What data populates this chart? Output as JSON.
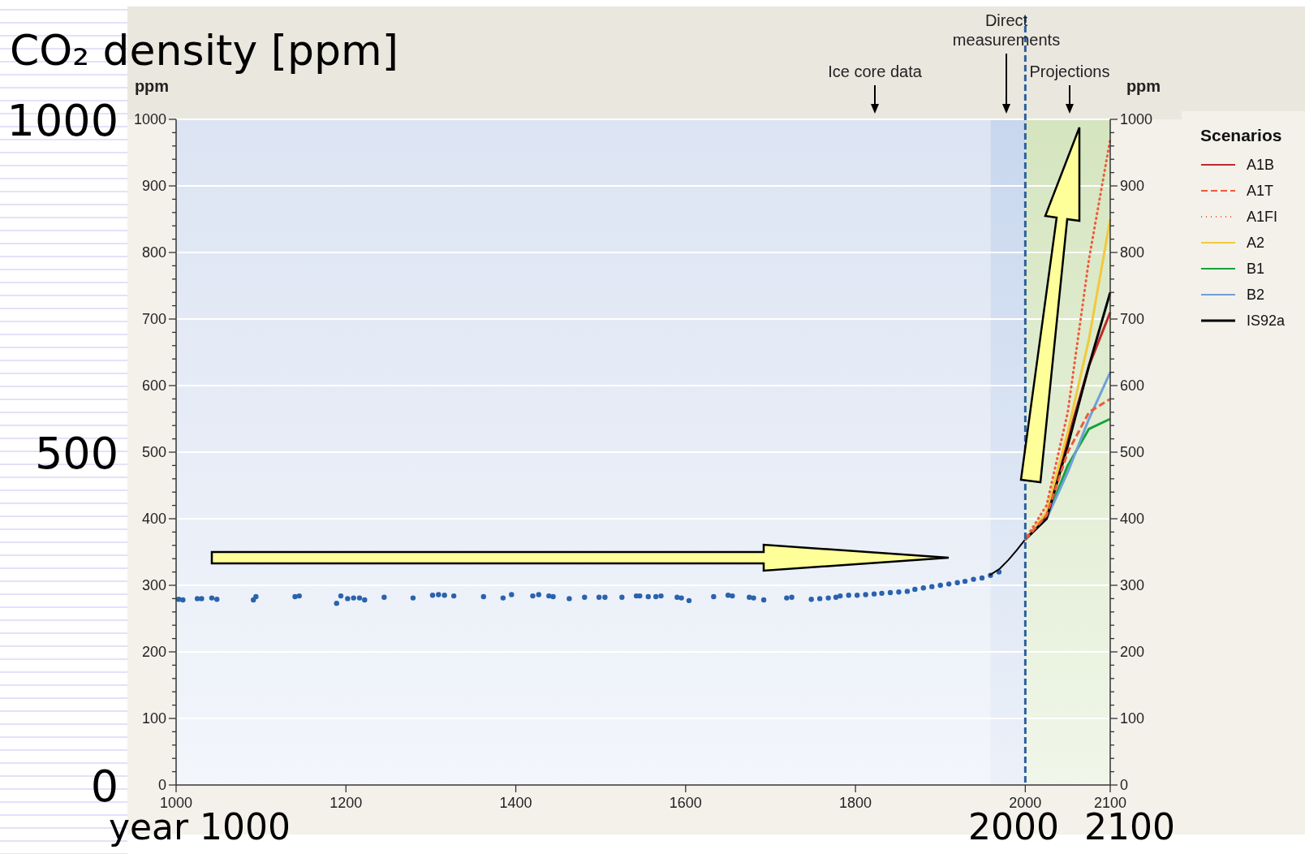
{
  "chart_data": {
    "type": "line",
    "title": "CO₂ density [ppm]",
    "ylabel": "ppm",
    "y2label": "ppm",
    "legend_title": "Scenarios",
    "legend": "right",
    "grid": "y",
    "xlim": [
      1000,
      2100
    ],
    "xticks": [
      1000,
      1200,
      1400,
      1600,
      1800,
      2000,
      2100
    ],
    "ylim": [
      0,
      1000
    ],
    "yticks": [
      0,
      {
        "value": 20,
        "label": null
      },
      {
        "value": 40,
        "label": null
      },
      {
        "value": 60,
        "label": null
      },
      {
        "value": 80,
        "label": null
      },
      100,
      {
        "value": 120,
        "label": null
      },
      {
        "value": 140,
        "label": null
      },
      {
        "value": 160,
        "label": null
      },
      {
        "value": 180,
        "label": null
      },
      200,
      {
        "value": 220,
        "label": null
      },
      {
        "value": 240,
        "label": null
      },
      {
        "value": 260,
        "label": null
      },
      {
        "value": 280,
        "label": null
      },
      300,
      {
        "value": 320,
        "label": null
      },
      {
        "value": 340,
        "label": null
      },
      {
        "value": 360,
        "label": null
      },
      {
        "value": 380,
        "label": null
      },
      400,
      {
        "value": 420,
        "label": null
      },
      {
        "value": 440,
        "label": null
      },
      {
        "value": 460,
        "label": null
      },
      {
        "value": 480,
        "label": null
      },
      500,
      {
        "value": 520,
        "label": null
      },
      {
        "value": 540,
        "label": null
      },
      {
        "value": 560,
        "label": null
      },
      {
        "value": 580,
        "label": null
      },
      600,
      {
        "value": 620,
        "label": null
      },
      {
        "value": 640,
        "label": null
      },
      {
        "value": 660,
        "label": null
      },
      {
        "value": 680,
        "label": null
      },
      700,
      {
        "value": 720,
        "label": null
      },
      {
        "value": 740,
        "label": null
      },
      {
        "value": 760,
        "label": null
      },
      {
        "value": 780,
        "label": null
      },
      800,
      {
        "value": 820,
        "label": null
      },
      {
        "value": 840,
        "label": null
      },
      {
        "value": 860,
        "label": null
      },
      {
        "value": 880,
        "label": null
      },
      900,
      {
        "value": 920,
        "label": null
      },
      {
        "value": 940,
        "label": null
      },
      {
        "value": 960,
        "label": null
      },
      {
        "value": 980,
        "label": null
      },
      1000
    ],
    "y2lim": [
      0,
      1000
    ],
    "y2ticks": [
      0,
      100,
      200,
      300,
      400,
      500,
      600,
      700,
      800,
      900,
      1000
    ],
    "bands": [
      {
        "axis": "x",
        "from": 1000,
        "to": 1959,
        "color": "#dce4f3"
      },
      {
        "axis": "x",
        "from": 1959,
        "to": 2000,
        "color": "#c8d7ee"
      },
      {
        "axis": "x",
        "from": 2000,
        "to": 2100,
        "color": "#d5e5bf"
      }
    ],
    "ref_lines": [
      {
        "axis": "x",
        "value": 2000,
        "color": "#2d5f9e",
        "line_style": "dashed"
      }
    ],
    "annotations": [
      "Ice core data",
      "Direct measurements",
      "Projections",
      "1000",
      "500",
      "0",
      "year 1000",
      "2000",
      "2100"
    ],
    "series": [
      {
        "type": "scatter",
        "color": "#2a62ad",
        "marker": "circle",
        "x": [
          1003,
          1008,
          1025,
          1030,
          1042,
          1048,
          1091,
          1094,
          1140,
          1145,
          1189,
          1194,
          1202,
          1209,
          1216,
          1222,
          1245,
          1279,
          1302,
          1309,
          1316,
          1327,
          1362,
          1385,
          1395,
          1420,
          1427,
          1439,
          1444,
          1463,
          1481,
          1498,
          1505,
          1525,
          1542,
          1546,
          1556,
          1565,
          1571,
          1590,
          1595,
          1604,
          1633,
          1650,
          1655,
          1675,
          1680,
          1692,
          1719,
          1725,
          1748,
          1758,
          1768,
          1777,
          1782,
          1792,
          1802,
          1812,
          1822,
          1831,
          1841,
          1851,
          1861,
          1870,
          1880,
          1890,
          1900,
          1910,
          1920,
          1929,
          1939,
          1949,
          1959,
          1969
        ],
        "values": [
          279,
          278,
          280,
          280,
          281,
          279,
          278,
          283,
          283,
          284,
          273,
          284,
          280,
          281,
          281,
          278,
          282,
          281,
          285,
          286,
          285,
          284,
          283,
          281,
          286,
          284,
          286,
          284,
          283,
          280,
          282,
          282,
          282,
          282,
          284,
          284,
          283,
          283,
          284,
          282,
          281,
          277,
          283,
          285,
          284,
          282,
          281,
          278,
          281,
          282,
          279,
          280,
          281,
          282,
          284,
          285,
          285,
          286,
          287,
          288,
          289,
          290,
          291,
          294,
          296,
          298,
          300,
          302,
          304,
          306,
          309,
          311,
          315,
          320
        ]
      },
      {
        "type": "line",
        "color": "#000000",
        "x": [
          1958,
          1970,
          1980,
          1990,
          2000
        ],
        "values": [
          315,
          325,
          338,
          353,
          369
        ]
      },
      {
        "name": "A1B",
        "color": "#c0272d",
        "line_style": "solid",
        "x": [
          2000,
          2025,
          2050,
          2075,
          2100
        ],
        "values": [
          369,
          405,
          520,
          630,
          710
        ]
      },
      {
        "name": "A1T",
        "color": "#ee5a3c",
        "line_style": "dashed",
        "x": [
          2000,
          2025,
          2050,
          2075,
          2100
        ],
        "values": [
          369,
          405,
          500,
          560,
          580
        ]
      },
      {
        "name": "A1FI",
        "color": "#ee5a3c",
        "line_style": "dotted",
        "x": [
          2000,
          2025,
          2050,
          2075,
          2100
        ],
        "values": [
          369,
          420,
          560,
          790,
          970
        ]
      },
      {
        "name": "A2",
        "color": "#f1c93c",
        "line_style": "solid",
        "x": [
          2000,
          2025,
          2050,
          2075,
          2100
        ],
        "values": [
          369,
          410,
          530,
          670,
          850
        ]
      },
      {
        "name": "B1",
        "color": "#14a33a",
        "line_style": "solid",
        "x": [
          2000,
          2025,
          2050,
          2075,
          2100
        ],
        "values": [
          369,
          400,
          480,
          535,
          550
        ]
      },
      {
        "name": "B2",
        "color": "#6fa0d8",
        "line_style": "solid",
        "x": [
          2000,
          2025,
          2050,
          2075,
          2100
        ],
        "values": [
          369,
          400,
          470,
          550,
          620
        ]
      },
      {
        "name": "IS92a",
        "color": "#000000",
        "line_style": "solid",
        "x": [
          2000,
          2025,
          2050,
          2075,
          2100
        ],
        "values": [
          369,
          400,
          510,
          630,
          740
        ]
      }
    ]
  }
}
